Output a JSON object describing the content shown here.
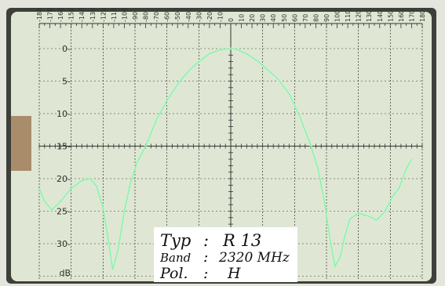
{
  "colors": {
    "bezel": "#e4e6de",
    "bezel_shadow": "#3d4039",
    "screen": "#dfe6d3",
    "grid": "#303530",
    "trace": "#8ff0b0",
    "trace_glow": "#c8ffd8",
    "tick_text": "#2e322e",
    "card": "#ffffff",
    "card_text": "#111111",
    "side_strip": "#a98c6a"
  },
  "angle_scale": {
    "labels": [
      "-180",
      "-170",
      "-160",
      "-150",
      "-140",
      "-130",
      "-120",
      "-110",
      "-100",
      "-90",
      "-80",
      "-70",
      "-60",
      "-50",
      "-40",
      "-30",
      "-20",
      "-10",
      "0",
      "10",
      "20",
      "30",
      "40",
      "50",
      "60",
      "70",
      "80",
      "90",
      "100",
      "110",
      "120",
      "130",
      "140",
      "150",
      "160",
      "170",
      "180"
    ]
  },
  "db_scale": {
    "labels": [
      "0",
      "5",
      "10",
      "15",
      "20",
      "25",
      "30",
      "dB"
    ]
  },
  "label_card": {
    "row1": {
      "key": "Typ",
      "sep": ":",
      "value": "R 13"
    },
    "row2": {
      "key": "Band",
      "sep": ":",
      "value": "2320 MHz"
    },
    "row3": {
      "key": "Pol.",
      "sep": ":",
      "value": "H"
    }
  },
  "pattern_trace": {
    "unit_x": "deg",
    "unit_y": "dB",
    "points": [
      [
        -180,
        21.5
      ],
      [
        -175,
        23.5
      ],
      [
        -168,
        24.8
      ],
      [
        -160,
        23.5
      ],
      [
        -150,
        21.5
      ],
      [
        -140,
        20.3
      ],
      [
        -132,
        20.0
      ],
      [
        -126,
        21.2
      ],
      [
        -120,
        24.5
      ],
      [
        -115,
        29.5
      ],
      [
        -111,
        34.0
      ],
      [
        -106,
        31.0
      ],
      [
        -100,
        25.0
      ],
      [
        -94,
        20.5
      ],
      [
        -88,
        17.5
      ],
      [
        -80,
        15.0
      ],
      [
        -70,
        11.0
      ],
      [
        -60,
        8.0
      ],
      [
        -50,
        5.5
      ],
      [
        -40,
        3.5
      ],
      [
        -30,
        2.0
      ],
      [
        -20,
        0.8
      ],
      [
        -10,
        0.2
      ],
      [
        0,
        0.0
      ],
      [
        5,
        0.1
      ],
      [
        15,
        0.8
      ],
      [
        25,
        1.9
      ],
      [
        35,
        3.3
      ],
      [
        45,
        4.8
      ],
      [
        55,
        7.0
      ],
      [
        65,
        10.5
      ],
      [
        75,
        14.8
      ],
      [
        82,
        18.5
      ],
      [
        88,
        23.5
      ],
      [
        93,
        29.0
      ],
      [
        98,
        33.5
      ],
      [
        103,
        32.0
      ],
      [
        107,
        29.0
      ],
      [
        112,
        26.2
      ],
      [
        120,
        25.3
      ],
      [
        130,
        25.8
      ],
      [
        137,
        26.4
      ],
      [
        145,
        25.0
      ],
      [
        152,
        22.8
      ],
      [
        158,
        21.5
      ],
      [
        165,
        18.5
      ],
      [
        170,
        17.0
      ]
    ]
  }
}
